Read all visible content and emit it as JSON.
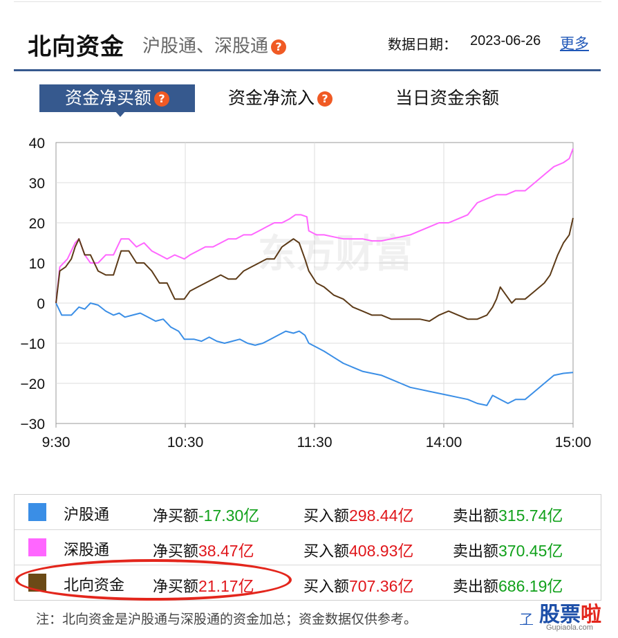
{
  "header": {
    "title": "北向资金",
    "subtitle": "沪股通、深股通",
    "date_label": "数据日期：",
    "date": "2023-06-26",
    "more_link": "更多"
  },
  "tabs": [
    {
      "label": "资金净买额",
      "active": true,
      "has_help": true
    },
    {
      "label": "资金净流入",
      "active": false,
      "has_help": true
    },
    {
      "label": "当日资金余额",
      "active": false,
      "has_help": false
    }
  ],
  "help_glyph": "?",
  "chart_data": {
    "type": "line",
    "x_ticks": [
      "9:30",
      "10:30",
      "11:30",
      "14:00",
      "15:00"
    ],
    "y_ticks": [
      40,
      30,
      20,
      10,
      0,
      -10,
      -20,
      -30
    ],
    "ylim": [
      -30,
      40
    ],
    "grid": true,
    "watermark": "东方财富",
    "series": [
      {
        "name": "沪股通",
        "color": "#3a8ee6",
        "points": [
          [
            0,
            0
          ],
          [
            3,
            -3
          ],
          [
            8,
            -3
          ],
          [
            12,
            -1
          ],
          [
            15,
            -1.5
          ],
          [
            18,
            0
          ],
          [
            22,
            -0.5
          ],
          [
            26,
            -2
          ],
          [
            30,
            -3
          ],
          [
            33,
            -2.5
          ],
          [
            36,
            -3.5
          ],
          [
            40,
            -3
          ],
          [
            44,
            -2.5
          ],
          [
            48,
            -3.5
          ],
          [
            52,
            -4.5
          ],
          [
            56,
            -4
          ],
          [
            60,
            -6
          ],
          [
            64,
            -7
          ],
          [
            67,
            -9
          ],
          [
            72,
            -9
          ],
          [
            76,
            -9.5
          ],
          [
            80,
            -8.5
          ],
          [
            84,
            -9.5
          ],
          [
            88,
            -10
          ],
          [
            92,
            -9.5
          ],
          [
            96,
            -9
          ],
          [
            100,
            -10
          ],
          [
            104,
            -10.5
          ],
          [
            108,
            -10
          ],
          [
            112,
            -9
          ],
          [
            116,
            -8
          ],
          [
            120,
            -7
          ],
          [
            124,
            -7.5
          ],
          [
            127,
            -7
          ],
          [
            130,
            -8
          ],
          [
            132,
            -10
          ],
          [
            136,
            -11
          ],
          [
            140,
            -12
          ],
          [
            145,
            -13.5
          ],
          [
            150,
            -15
          ],
          [
            155,
            -16
          ],
          [
            160,
            -17
          ],
          [
            165,
            -17.5
          ],
          [
            170,
            -18
          ],
          [
            175,
            -19
          ],
          [
            180,
            -20
          ],
          [
            185,
            -21
          ],
          [
            190,
            -21.5
          ],
          [
            195,
            -22
          ],
          [
            200,
            -22.5
          ],
          [
            205,
            -23
          ],
          [
            210,
            -23.5
          ],
          [
            215,
            -24
          ],
          [
            220,
            -25
          ],
          [
            225,
            -25.5
          ],
          [
            228,
            -23
          ],
          [
            232,
            -24
          ],
          [
            236,
            -25
          ],
          [
            240,
            -24
          ],
          [
            245,
            -24
          ],
          [
            250,
            -22
          ],
          [
            255,
            -20
          ],
          [
            260,
            -18
          ],
          [
            265,
            -17.5
          ],
          [
            270,
            -17.3
          ]
        ]
      },
      {
        "name": "深股通",
        "color": "#ff66ff",
        "points": [
          [
            0,
            0
          ],
          [
            2,
            9
          ],
          [
            6,
            11
          ],
          [
            10,
            15
          ],
          [
            12,
            16
          ],
          [
            15,
            12
          ],
          [
            18,
            10
          ],
          [
            22,
            10
          ],
          [
            26,
            12
          ],
          [
            30,
            12
          ],
          [
            34,
            16
          ],
          [
            38,
            16
          ],
          [
            42,
            14
          ],
          [
            46,
            15
          ],
          [
            50,
            13
          ],
          [
            54,
            12
          ],
          [
            58,
            11
          ],
          [
            62,
            12
          ],
          [
            67,
            11
          ],
          [
            70,
            12
          ],
          [
            74,
            13
          ],
          [
            78,
            14
          ],
          [
            82,
            14
          ],
          [
            86,
            15
          ],
          [
            90,
            16
          ],
          [
            94,
            16
          ],
          [
            98,
            17
          ],
          [
            102,
            17
          ],
          [
            106,
            18
          ],
          [
            110,
            19
          ],
          [
            114,
            20
          ],
          [
            118,
            20
          ],
          [
            122,
            21
          ],
          [
            125,
            22
          ],
          [
            128,
            22
          ],
          [
            131,
            21.5
          ],
          [
            132,
            18
          ],
          [
            136,
            17
          ],
          [
            140,
            17
          ],
          [
            145,
            16.5
          ],
          [
            150,
            16
          ],
          [
            155,
            16
          ],
          [
            160,
            16
          ],
          [
            165,
            15.5
          ],
          [
            170,
            15.5
          ],
          [
            175,
            16
          ],
          [
            180,
            16.5
          ],
          [
            185,
            17
          ],
          [
            190,
            18
          ],
          [
            195,
            19
          ],
          [
            200,
            20
          ],
          [
            205,
            20
          ],
          [
            210,
            21
          ],
          [
            215,
            22
          ],
          [
            220,
            25
          ],
          [
            225,
            26
          ],
          [
            230,
            27
          ],
          [
            235,
            27
          ],
          [
            240,
            28
          ],
          [
            245,
            28
          ],
          [
            250,
            30
          ],
          [
            255,
            32
          ],
          [
            260,
            34
          ],
          [
            265,
            35
          ],
          [
            268,
            36
          ],
          [
            270,
            38.5
          ]
        ]
      },
      {
        "name": "北向资金",
        "color": "#5c3a17",
        "points": [
          [
            0,
            0
          ],
          [
            2,
            8
          ],
          [
            5,
            9
          ],
          [
            8,
            11
          ],
          [
            10,
            14
          ],
          [
            12,
            16
          ],
          [
            15,
            12
          ],
          [
            18,
            12
          ],
          [
            22,
            8
          ],
          [
            26,
            7
          ],
          [
            30,
            7
          ],
          [
            34,
            13
          ],
          [
            38,
            13
          ],
          [
            42,
            10
          ],
          [
            46,
            10
          ],
          [
            50,
            8
          ],
          [
            54,
            5
          ],
          [
            58,
            5
          ],
          [
            60,
            3
          ],
          [
            62,
            1
          ],
          [
            67,
            1
          ],
          [
            70,
            3
          ],
          [
            74,
            4
          ],
          [
            78,
            5
          ],
          [
            82,
            6
          ],
          [
            86,
            7
          ],
          [
            90,
            6
          ],
          [
            94,
            6
          ],
          [
            98,
            8
          ],
          [
            102,
            9
          ],
          [
            106,
            10
          ],
          [
            110,
            11
          ],
          [
            114,
            11
          ],
          [
            118,
            14
          ],
          [
            121,
            15
          ],
          [
            124,
            16
          ],
          [
            127,
            15
          ],
          [
            130,
            11
          ],
          [
            132,
            8
          ],
          [
            136,
            5
          ],
          [
            140,
            4
          ],
          [
            145,
            2
          ],
          [
            150,
            1
          ],
          [
            155,
            -1
          ],
          [
            160,
            -2
          ],
          [
            165,
            -3
          ],
          [
            170,
            -3
          ],
          [
            175,
            -4
          ],
          [
            180,
            -4
          ],
          [
            185,
            -4
          ],
          [
            190,
            -4
          ],
          [
            195,
            -4.5
          ],
          [
            200,
            -3
          ],
          [
            205,
            -2
          ],
          [
            210,
            -3
          ],
          [
            215,
            -4
          ],
          [
            220,
            -4
          ],
          [
            225,
            -3
          ],
          [
            228,
            -1
          ],
          [
            230,
            1
          ],
          [
            232,
            4
          ],
          [
            235,
            2
          ],
          [
            238,
            0
          ],
          [
            240,
            1
          ],
          [
            245,
            1
          ],
          [
            250,
            3
          ],
          [
            255,
            5
          ],
          [
            258,
            7
          ],
          [
            262,
            12
          ],
          [
            265,
            15
          ],
          [
            268,
            17
          ],
          [
            270,
            21.2
          ]
        ]
      }
    ]
  },
  "legend": [
    {
      "name": "沪股通",
      "color": "#3a8ee6",
      "net_label": "净买额",
      "net_value": "-17.30亿",
      "net_color": "#11a11b",
      "buy_label": "买入额",
      "buy_value": "298.44亿",
      "sell_label": "卖出额",
      "sell_value": "315.74亿"
    },
    {
      "name": "深股通",
      "color": "#ff66ff",
      "net_label": "净买额",
      "net_value": "38.47亿",
      "net_color": "#e0161b",
      "buy_label": "买入额",
      "buy_value": "408.93亿",
      "sell_label": "卖出额",
      "sell_value": "370.45亿"
    },
    {
      "name": "北向资金",
      "color": "#6b4a16",
      "net_label": "净买额",
      "net_value": "21.17亿",
      "net_color": "#e0161b",
      "buy_label": "买入额",
      "buy_value": "707.36亿",
      "sell_label": "卖出额",
      "sell_value": "686.19亿"
    }
  ],
  "note": "注：北向资金是沪股通与深股通的资金加总；资金数据仅供参考。",
  "note_link": "了",
  "site_logo": {
    "part1": "股票",
    "part2": "啦",
    "url": "Gupiaola.com"
  }
}
